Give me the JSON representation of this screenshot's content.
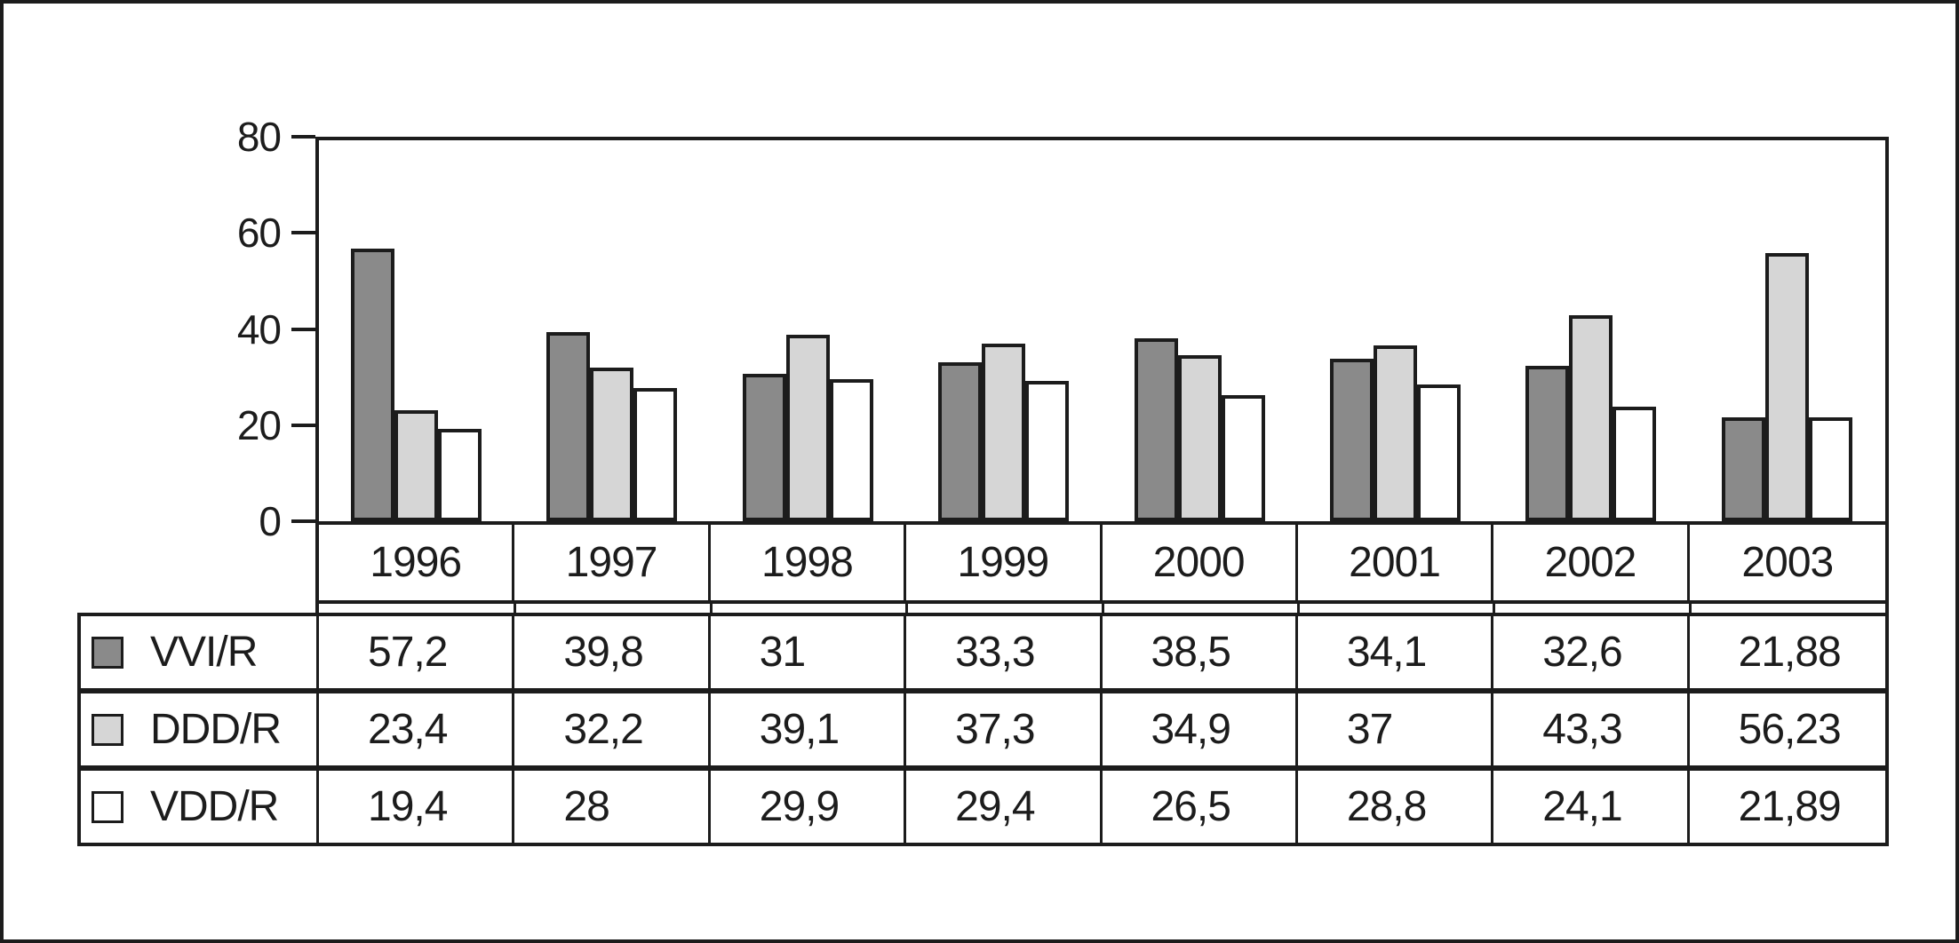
{
  "chart_data": {
    "type": "bar",
    "title": "",
    "xlabel": "",
    "ylabel": "",
    "categories": [
      "1996",
      "1997",
      "1998",
      "1999",
      "2000",
      "2001",
      "2002",
      "2003"
    ],
    "series": [
      {
        "name": "VVI/R",
        "color": "#8a8a8a",
        "values": [
          57.2,
          39.8,
          31,
          33.3,
          38.5,
          34.1,
          32.6,
          21.88
        ],
        "labels": [
          "57,2",
          "39,8",
          "31",
          "33,3",
          "38,5",
          "34,1",
          "32,6",
          "21,88"
        ]
      },
      {
        "name": "DDD/R",
        "color": "#d6d6d6",
        "values": [
          23.4,
          32.2,
          39.1,
          37.3,
          34.9,
          37,
          43.3,
          56.23
        ],
        "labels": [
          "23,4",
          "32,2",
          "39,1",
          "37,3",
          "34,9",
          "37",
          "43,3",
          "56,23"
        ]
      },
      {
        "name": "VDD/R",
        "color": "#ffffff",
        "values": [
          19.4,
          28,
          29.9,
          29.4,
          26.5,
          28.8,
          24.1,
          21.89
        ],
        "labels": [
          "19,4",
          "28",
          "29,9",
          "29,4",
          "26,5",
          "28,8",
          "24,1",
          "21,89"
        ]
      }
    ],
    "ylim": [
      0,
      80
    ],
    "yticks": [
      0,
      20,
      40,
      60,
      80
    ],
    "ytick_labels": [
      "0",
      "20",
      "40",
      "60",
      "80"
    ],
    "grid": false,
    "legend_position": "table-left",
    "bar_outline_color": "#1c1c1c"
  },
  "colors": {
    "line": "#1c1c1c",
    "background": "#ffffff"
  }
}
